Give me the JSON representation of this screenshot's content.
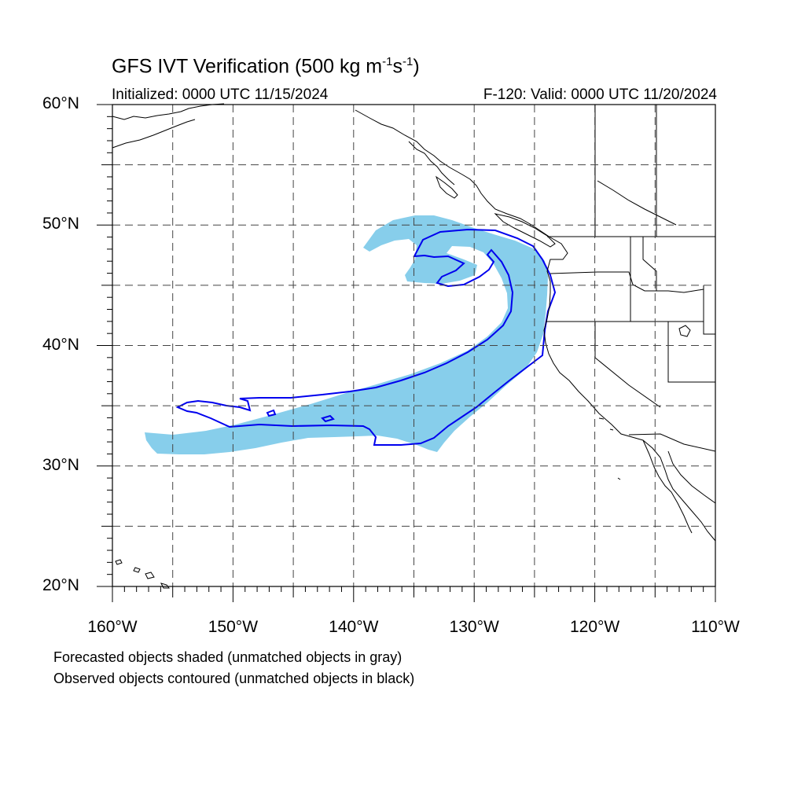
{
  "title_main": "GFS IVT Verification (500 kg m",
  "title_sup1": "-1",
  "title_mid": "s",
  "title_sup2": "-1",
  "title_end": ")",
  "initialized": "Initialized: 0000 UTC 11/15/2024",
  "valid": "F-120: Valid: 0000 UTC 11/20/2024",
  "lat_labels": [
    "60°N",
    "50°N",
    "40°N",
    "30°N",
    "20°N"
  ],
  "lon_labels": [
    "160°W",
    "150°W",
    "140°W",
    "130°W",
    "120°W",
    "110°W"
  ],
  "caption_forecast": "Forecasted objects shaded (unmatched objects in gray)",
  "caption_observed": "Observed objects contoured (unmatched objects in black)",
  "colors": {
    "forecast_fill": "#87ceeb",
    "observed_contour": "#0000ee",
    "coastline": "#000000",
    "grid": "#444444"
  },
  "extent": {
    "lon_min": -160,
    "lon_max": -110,
    "lat_min": 20,
    "lat_max": 60
  }
}
